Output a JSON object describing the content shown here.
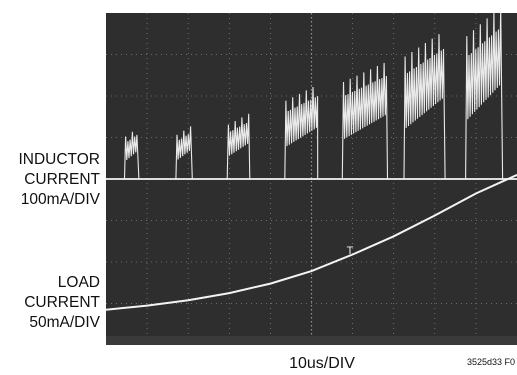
{
  "inductor_label": [
    "INDUCTOR",
    "CURRENT",
    "100mA/DIV"
  ],
  "load_label": [
    "LOAD",
    "CURRENT",
    "50mA/DIV"
  ],
  "timebase": "10us/DIV",
  "figure_id": "3525d33 F0",
  "trigger_marker": "T",
  "colors": {
    "screen": "#2e2e2e",
    "grid": "#9a9a9a",
    "trace": "#f4f4f4"
  },
  "chart_data": {
    "type": "line",
    "title": "",
    "xlabel": "10us/DIV",
    "ylabel": "",
    "divisions": {
      "x": 10,
      "y": 8
    },
    "xlim": [
      0,
      10
    ],
    "ylim": [
      0,
      8
    ],
    "grid": true,
    "series": [
      {
        "name": "INDUCTOR CURRENT",
        "scale": "100mA/DIV",
        "baseline_div": 4.0,
        "bursts": [
          {
            "start": 0.45,
            "end": 0.8,
            "peak_div": 1.25
          },
          {
            "start": 1.7,
            "end": 2.1,
            "peak_div": 1.3
          },
          {
            "start": 2.95,
            "end": 3.5,
            "peak_div": 1.6
          },
          {
            "start": 4.35,
            "end": 5.15,
            "peak_div": 2.3
          },
          {
            "start": 5.75,
            "end": 6.85,
            "peak_div": 2.85
          },
          {
            "start": 7.25,
            "end": 8.25,
            "peak_div": 3.6
          },
          {
            "start": 8.75,
            "end": 9.65,
            "peak_div": 4.2
          }
        ]
      },
      {
        "name": "LOAD CURRENT",
        "scale": "50mA/DIV",
        "x": [
          0,
          1,
          2,
          3,
          4,
          5,
          6,
          7,
          8,
          9,
          10
        ],
        "y": [
          0.85,
          0.95,
          1.08,
          1.25,
          1.48,
          1.78,
          2.18,
          2.62,
          3.12,
          3.65,
          4.1
        ]
      }
    ]
  }
}
